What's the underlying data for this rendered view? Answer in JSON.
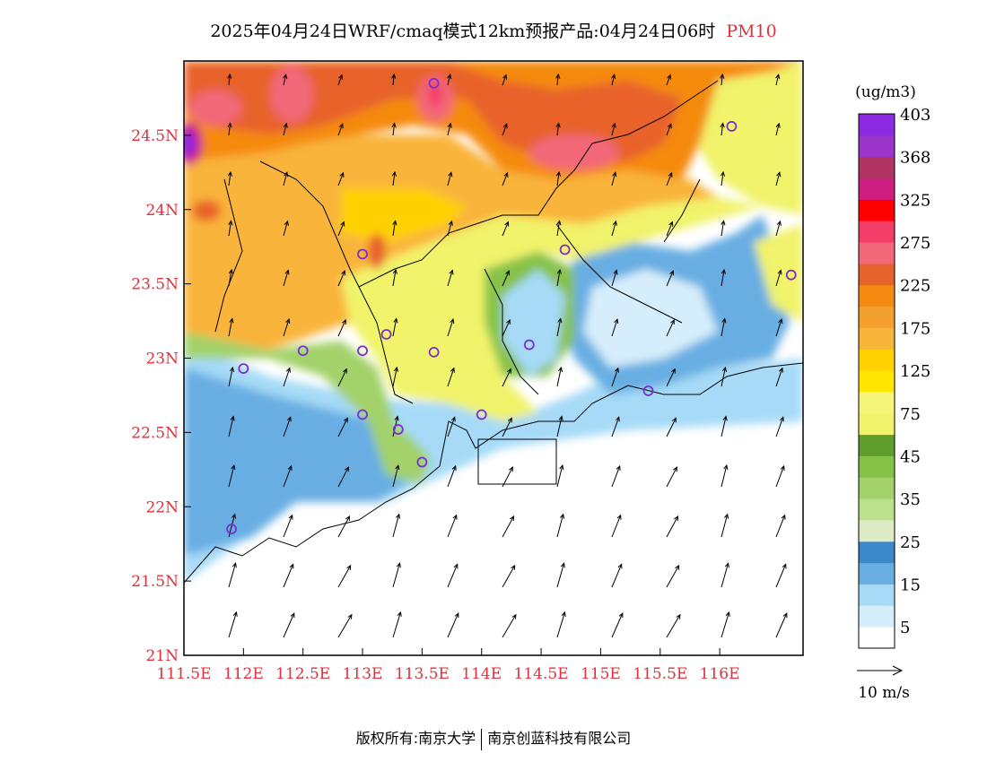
{
  "header": {
    "title": "2025年04月24日WRF/cmaq模式12km预报产品:04月24日06时",
    "pollutant": "PM10"
  },
  "colors": {
    "label_red": "#e0303a",
    "frame": "#000000",
    "station_marker": "#7a2fd0"
  },
  "map": {
    "lon_range": [
      111.5,
      116.7
    ],
    "lat_range": [
      21.0,
      25.0
    ],
    "lon_ticks": [
      "111.5E",
      "112E",
      "112.5E",
      "113E",
      "113.5E",
      "114E",
      "114.5E",
      "115E",
      "115.5E",
      "116E"
    ],
    "lat_ticks": [
      "21N",
      "21.5N",
      "22N",
      "22.5N",
      "23N",
      "23.5N",
      "24N",
      "24.5N"
    ],
    "stations": [
      {
        "lon": 113.6,
        "lat": 24.85
      },
      {
        "lon": 116.1,
        "lat": 24.56
      },
      {
        "lon": 113.0,
        "lat": 23.7
      },
      {
        "lon": 114.7,
        "lat": 23.73
      },
      {
        "lon": 116.6,
        "lat": 23.56
      },
      {
        "lon": 113.0,
        "lat": 23.05
      },
      {
        "lon": 113.2,
        "lat": 23.16
      },
      {
        "lon": 113.6,
        "lat": 23.04
      },
      {
        "lon": 114.4,
        "lat": 23.09
      },
      {
        "lon": 112.0,
        "lat": 22.93
      },
      {
        "lon": 112.5,
        "lat": 23.05
      },
      {
        "lon": 113.0,
        "lat": 22.62
      },
      {
        "lon": 113.3,
        "lat": 22.52
      },
      {
        "lon": 113.5,
        "lat": 22.3
      },
      {
        "lon": 114.0,
        "lat": 22.62
      },
      {
        "lon": 115.4,
        "lat": 22.78
      },
      {
        "lon": 111.9,
        "lat": 21.85
      }
    ]
  },
  "legend": {
    "unit": "(ug/m3)",
    "colors": [
      "#ffffff",
      "#d6eefb",
      "#a6daf7",
      "#68aee3",
      "#3d88c8",
      "#dcebc3",
      "#bde08c",
      "#a3d26a",
      "#86c248",
      "#5f9e2c",
      "#f1f36a",
      "#f5f57a",
      "#ffe600",
      "#ffd100",
      "#f9b43a",
      "#f4a030",
      "#f58a10",
      "#e8622b",
      "#f26878",
      "#f53d6a",
      "#ff0000",
      "#cf1e82",
      "#b03562",
      "#9b35c9",
      "#8b2ae0"
    ],
    "labels": [
      "5",
      "15",
      "25",
      "35",
      "45",
      "75",
      "125",
      "175",
      "225",
      "275",
      "325",
      "368",
      "403"
    ],
    "wind_ref": "10 m/s"
  },
  "footer": {
    "copyright": "版权所有:南京大学",
    "company": "南京创蓝科技有限公司"
  }
}
